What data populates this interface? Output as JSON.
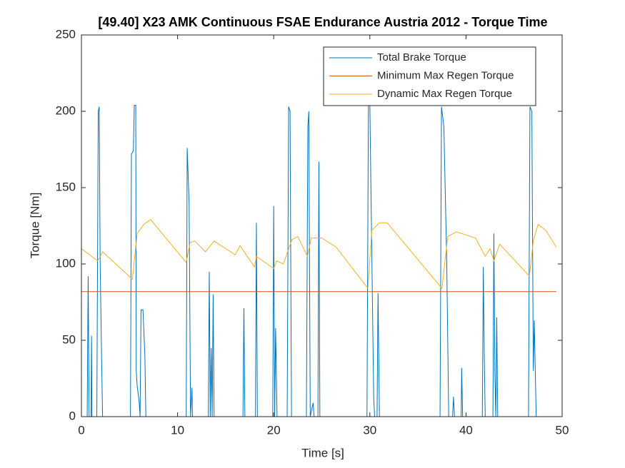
{
  "chart_data": {
    "type": "line",
    "title": "[49.40] X23 AMK Continuous  FSAE Endurance Austria 2012 - Torque Time",
    "xlabel": "Time [s]",
    "ylabel": "Torque [Nm]",
    "xlim": [
      0,
      50
    ],
    "ylim": [
      0,
      250
    ],
    "xticks": [
      0,
      10,
      20,
      30,
      40,
      50
    ],
    "yticks": [
      0,
      50,
      100,
      150,
      200,
      250
    ],
    "grid": false,
    "legend": "northeast",
    "series": [
      {
        "name": "Total Brake Torque",
        "color": "#0072BD",
        "x": [
          0,
          0.6,
          0.7,
          0.8,
          1.0,
          1.05,
          1.1,
          1.6,
          1.75,
          1.85,
          1.95,
          2.1,
          2.2,
          5.1,
          5.2,
          5.4,
          5.5,
          5.65,
          5.7,
          5.8,
          6.0,
          6.1,
          6.2,
          6.4,
          6.6,
          6.7,
          10.9,
          11.0,
          11.2,
          11.35,
          11.5,
          11.55,
          13.2,
          13.3,
          13.4,
          13.5,
          13.6,
          13.7,
          13.8,
          16.8,
          16.9,
          17.0,
          18.1,
          18.2,
          18.3,
          19.9,
          20.0,
          20.1,
          20.2,
          20.35,
          21.4,
          21.55,
          21.7,
          21.85,
          23.4,
          23.55,
          23.65,
          23.8,
          24.1,
          24.2,
          24.6,
          24.7,
          24.8,
          29.7,
          29.85,
          30.0,
          30.3,
          30.4,
          30.5,
          30.75,
          30.85,
          31.0,
          37.3,
          37.45,
          37.7,
          38.0,
          38.2,
          38.6,
          38.7,
          38.8,
          39.5,
          39.55,
          39.65,
          41.7,
          41.8,
          41.9,
          42.0,
          42.8,
          42.9,
          43.0,
          43.1,
          43.2,
          43.3,
          46.5,
          46.65,
          46.85,
          47.0,
          47.1,
          47.3,
          49.4
        ],
        "values": [
          0,
          0,
          92,
          0,
          0,
          53,
          0,
          0,
          200,
          203,
          100,
          37,
          0,
          0,
          172,
          174,
          204,
          204,
          30,
          20,
          10,
          0,
          70,
          70,
          40,
          0,
          0,
          176,
          140,
          0,
          19,
          0,
          0,
          95,
          0,
          45,
          0,
          80,
          0,
          0,
          71,
          0,
          0,
          127,
          0,
          0,
          138,
          0,
          58,
          0,
          0,
          203,
          200,
          0,
          0,
          190,
          200,
          0,
          9,
          0,
          0,
          167,
          0,
          0,
          204,
          204,
          60,
          12,
          0,
          0,
          81,
          0,
          0,
          203,
          190,
          100,
          0,
          0,
          13,
          0,
          0,
          32,
          0,
          0,
          98,
          40,
          0,
          0,
          120,
          30,
          0,
          65,
          0,
          0,
          203,
          200,
          30,
          63,
          0,
          0
        ]
      },
      {
        "name": "Minimum Max Regen Torque",
        "color": "#D95319",
        "x": [
          0,
          49.4
        ],
        "values": [
          81.9,
          81.9
        ]
      },
      {
        "name": "Dynamic Max Regen Torque",
        "color": "#EDB120",
        "x": [
          0,
          1.7,
          2.2,
          5.3,
          5.8,
          6.5,
          7.2,
          10.9,
          11.3,
          11.8,
          12.9,
          13.8,
          16.0,
          16.5,
          18.0,
          18.2,
          20.0,
          20.3,
          21.0,
          21.9,
          22.5,
          23.5,
          23.9,
          25.0,
          26.5,
          29.8,
          30.2,
          31.0,
          31.8,
          37.5,
          38.1,
          39.0,
          41.0,
          42.0,
          42.5,
          42.9,
          43.5,
          46.6,
          47.0,
          47.5,
          48.3,
          49.4
        ],
        "values": [
          110,
          102,
          108,
          90,
          120,
          126,
          129,
          101,
          114,
          115,
          108,
          115,
          106,
          112,
          98,
          105,
          97,
          102,
          100,
          116,
          118,
          105,
          117,
          117,
          111,
          84,
          122,
          127,
          127,
          84,
          118,
          121,
          117,
          105,
          110,
          102,
          113,
          92,
          115,
          126,
          122,
          111
        ]
      }
    ]
  }
}
